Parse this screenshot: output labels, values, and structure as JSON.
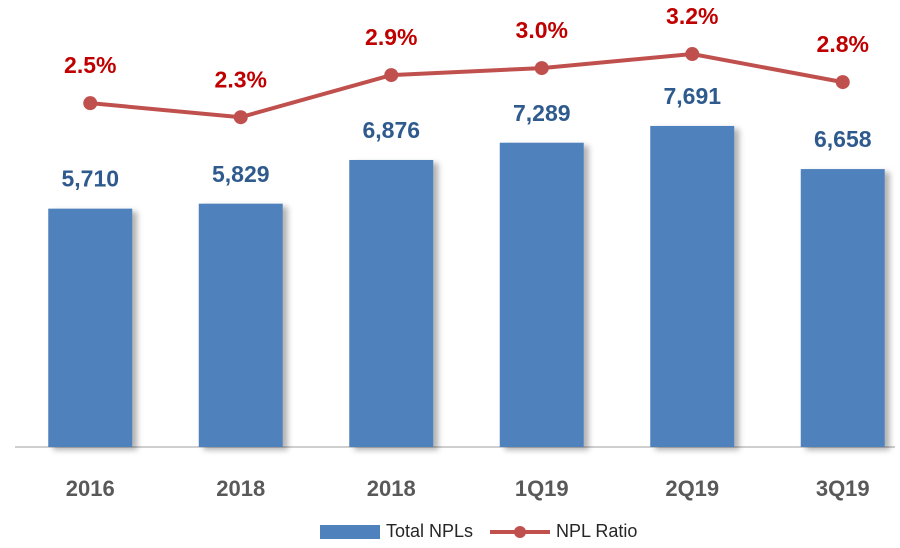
{
  "chart_data": {
    "type": "bar_line",
    "categories": [
      "2016",
      "2018",
      "2018",
      "1Q19",
      "2Q19",
      "3Q19"
    ],
    "series": [
      {
        "name": "Total NPLs",
        "type": "bar",
        "color": "#4f81bd",
        "label_color": "#2e5a8e",
        "values": [
          5710,
          5829,
          6876,
          7289,
          7691,
          6658
        ],
        "value_labels": [
          "5,710",
          "5,829",
          "6,876",
          "7,289",
          "7,691",
          "6,658"
        ]
      },
      {
        "name": "NPL Ratio",
        "type": "line",
        "axis": "y2",
        "color": "#c0504d",
        "label_color": "#c00000",
        "values": [
          2.5,
          2.3,
          2.9,
          3.0,
          3.2,
          2.8
        ],
        "value_labels": [
          "2.5%",
          "2.3%",
          "2.9%",
          "3.0%",
          "3.2%",
          "2.8%"
        ]
      }
    ],
    "ylim": [
      0,
      9750
    ],
    "y2lim": [
      -2.4,
      3.4
    ],
    "legend": "bottom"
  }
}
